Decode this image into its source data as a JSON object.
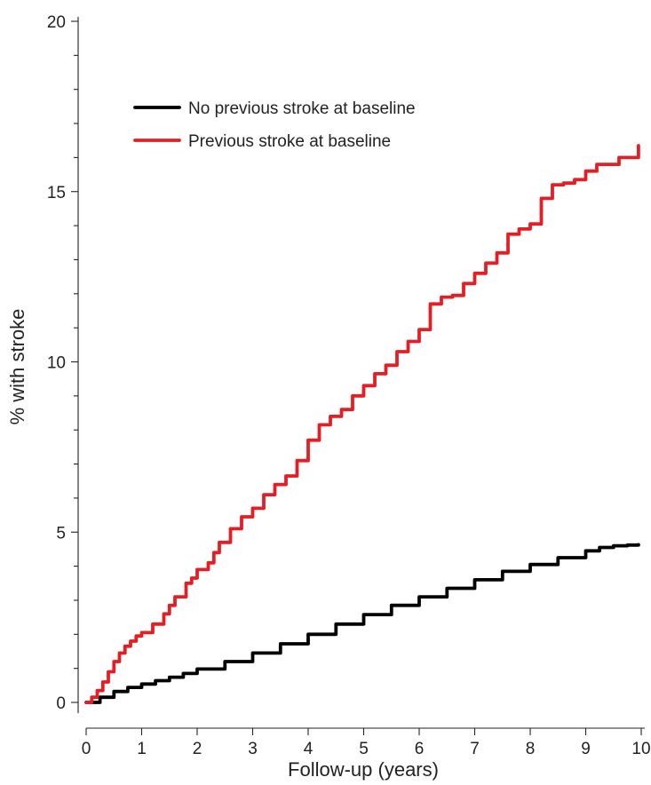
{
  "chart_data": {
    "type": "line",
    "title": "",
    "xlabel": "Follow-up (years)",
    "ylabel": "% with stroke",
    "xlim": [
      0,
      10
    ],
    "ylim": [
      0,
      20
    ],
    "x_ticks": [
      "0",
      "1",
      "2",
      "3",
      "4",
      "5",
      "6",
      "7",
      "8",
      "9",
      "10"
    ],
    "y_ticks": [
      "0",
      "5",
      "10",
      "15",
      "20"
    ],
    "y_minor_step": 1,
    "grid": false,
    "legend_position": "top-left",
    "series": [
      {
        "name": "No previous stroke at baseline",
        "color": "#000000",
        "x": [
          0,
          0.25,
          0.5,
          0.75,
          1,
          1.25,
          1.5,
          1.75,
          2,
          2.5,
          3,
          3.5,
          4,
          4.5,
          5,
          5.5,
          6,
          6.5,
          7,
          7.5,
          8,
          8.5,
          9,
          9.25,
          9.5,
          9.75,
          9.95
        ],
        "y": [
          0,
          0.15,
          0.32,
          0.44,
          0.54,
          0.64,
          0.74,
          0.85,
          0.98,
          1.2,
          1.45,
          1.72,
          2.0,
          2.3,
          2.58,
          2.85,
          3.1,
          3.35,
          3.6,
          3.85,
          4.05,
          4.25,
          4.45,
          4.55,
          4.6,
          4.62,
          4.63
        ]
      },
      {
        "name": "Previous stroke at baseline",
        "color": "#e31e24",
        "x": [
          0,
          0.1,
          0.2,
          0.3,
          0.4,
          0.5,
          0.6,
          0.7,
          0.8,
          0.9,
          1.0,
          1.2,
          1.4,
          1.5,
          1.6,
          1.8,
          1.9,
          2.0,
          2.2,
          2.3,
          2.4,
          2.6,
          2.8,
          3.0,
          3.2,
          3.4,
          3.6,
          3.8,
          4.0,
          4.2,
          4.4,
          4.6,
          4.8,
          5.0,
          5.2,
          5.4,
          5.6,
          5.8,
          6.0,
          6.2,
          6.4,
          6.6,
          6.8,
          7.0,
          7.2,
          7.4,
          7.6,
          7.8,
          8.0,
          8.2,
          8.4,
          8.6,
          8.8,
          9.0,
          9.2,
          9.4,
          9.6,
          9.8,
          9.9,
          9.95
        ],
        "y": [
          0,
          0.15,
          0.35,
          0.6,
          0.9,
          1.2,
          1.45,
          1.65,
          1.8,
          1.95,
          2.05,
          2.3,
          2.6,
          2.85,
          3.1,
          3.5,
          3.65,
          3.9,
          4.1,
          4.4,
          4.7,
          5.1,
          5.45,
          5.7,
          6.1,
          6.4,
          6.65,
          7.1,
          7.7,
          8.15,
          8.4,
          8.6,
          9.0,
          9.3,
          9.65,
          9.9,
          10.3,
          10.6,
          10.95,
          11.7,
          11.9,
          11.95,
          12.3,
          12.6,
          12.9,
          13.2,
          13.75,
          13.9,
          14.05,
          14.8,
          15.2,
          15.25,
          15.35,
          15.6,
          15.8,
          15.8,
          16.0,
          16.0,
          16.0,
          16.35
        ]
      }
    ]
  }
}
